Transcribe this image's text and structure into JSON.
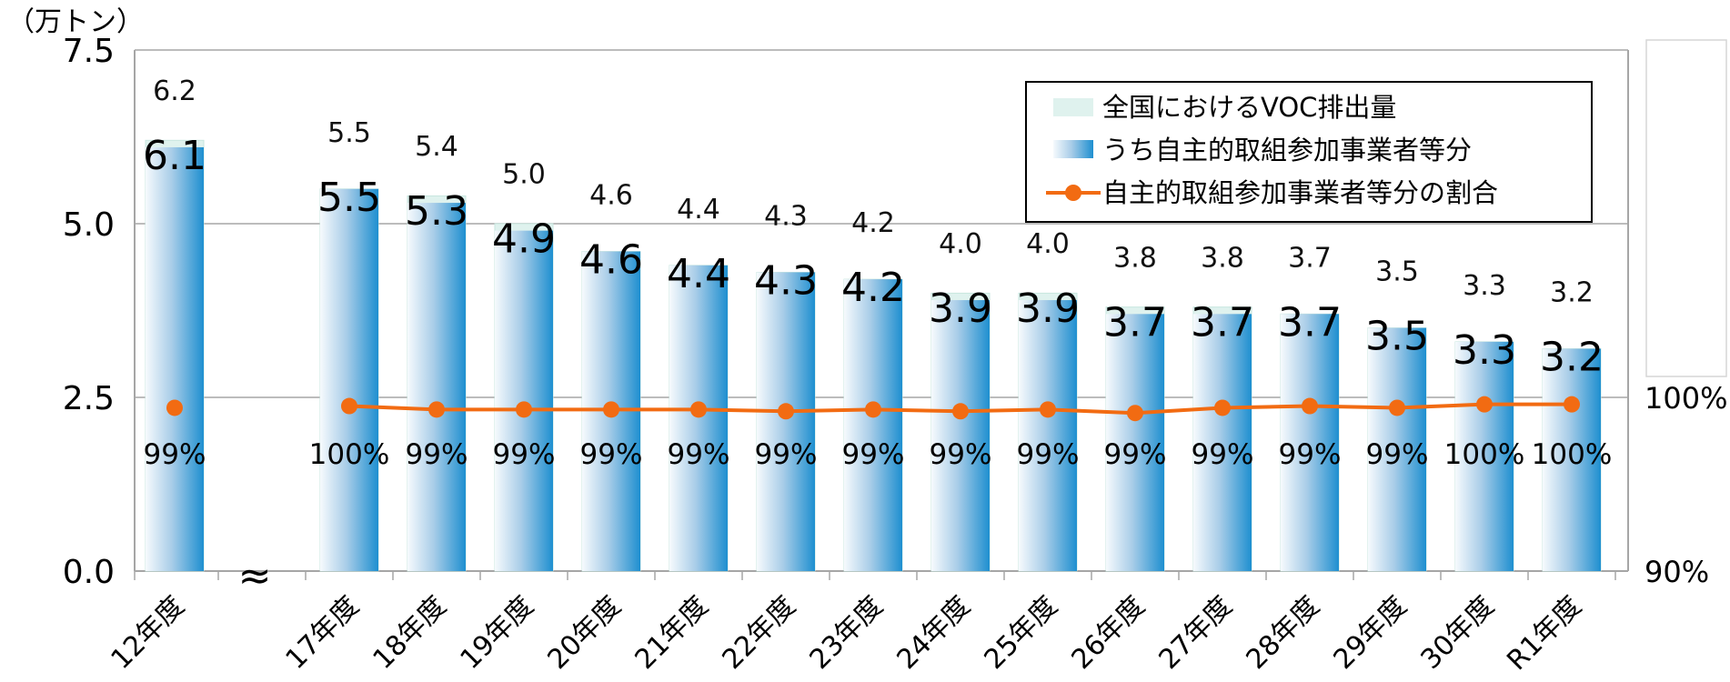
{
  "chart_data": {
    "type": "bar",
    "title": "",
    "y_unit_label": "（万トン）",
    "ylim": [
      0,
      7.5
    ],
    "yticks": [
      "0.0",
      "2.5",
      "5.0",
      "7.5"
    ],
    "y2lim": [
      90,
      100
    ],
    "y2ticks": [
      "90%",
      "100%"
    ],
    "categories": [
      "12年度",
      "17年度",
      "18年度",
      "19年度",
      "20年度",
      "21年度",
      "22年度",
      "23年度",
      "24年度",
      "25年度",
      "26年度",
      "27年度",
      "28年度",
      "29年度",
      "30年度",
      "R1年度"
    ],
    "series": [
      {
        "name": "全国におけるVOC排出量",
        "type": "bar",
        "values": [
          6.2,
          5.5,
          5.4,
          5.0,
          4.6,
          4.4,
          4.3,
          4.2,
          4.0,
          4.0,
          3.8,
          3.8,
          3.7,
          3.5,
          3.3,
          3.2
        ],
        "labels": [
          "6.2",
          "5.5",
          "5.4",
          "5.0",
          "4.6",
          "4.4",
          "4.3",
          "4.2",
          "4.0",
          "4.0",
          "3.8",
          "3.8",
          "3.7",
          "3.5",
          "3.3",
          "3.2"
        ]
      },
      {
        "name": "うち自主的取組参加事業者等分",
        "type": "bar",
        "values": [
          6.1,
          5.5,
          5.3,
          4.9,
          4.6,
          4.4,
          4.3,
          4.2,
          3.9,
          3.9,
          3.7,
          3.7,
          3.7,
          3.5,
          3.3,
          3.2
        ],
        "labels": [
          "6.1",
          "5.5",
          "5.3",
          "4.9",
          "4.6",
          "4.4",
          "4.3",
          "4.2",
          "3.9",
          "3.9",
          "3.7",
          "3.7",
          "3.7",
          "3.5",
          "3.3",
          "3.2"
        ]
      },
      {
        "name": "自主的取組参加事業者等分の割合",
        "type": "line",
        "axis": "right",
        "values": [
          99.4,
          99.5,
          99.3,
          99.3,
          99.3,
          99.3,
          99.2,
          99.3,
          99.2,
          99.3,
          99.1,
          99.4,
          99.5,
          99.4,
          99.6,
          99.6
        ],
        "labels": [
          "99%",
          "100%",
          "99%",
          "99%",
          "99%",
          "99%",
          "99%",
          "99%",
          "99%",
          "99%",
          "99%",
          "99%",
          "99%",
          "99%",
          "100%",
          "100%"
        ]
      }
    ],
    "axis_break_symbol": "≈",
    "legend_position": "top-right",
    "grid": true,
    "colors": {
      "total_bar": "#dff2ee",
      "part_bar_light": "#f4f9fd",
      "part_bar_dark": "#1e8fd0",
      "line": "#f26b12",
      "grid": "#a6a6a6"
    }
  }
}
